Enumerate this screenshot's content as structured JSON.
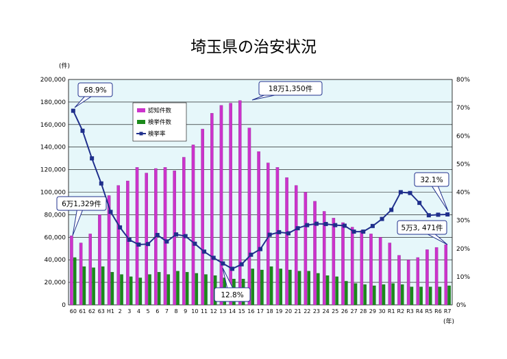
{
  "chart_data": {
    "type": "bar",
    "title": "埼玉県の治安状況",
    "ylabel_left_unit": "(件)",
    "xlabel_unit": "(年)",
    "left_axis": {
      "ylim": [
        0,
        200000
      ],
      "ticks": [
        "0",
        "20,000",
        "40,000",
        "60,000",
        "80,000",
        "100,000",
        "120,000",
        "140,000",
        "160,000",
        "180,000",
        "200,000"
      ]
    },
    "right_axis": {
      "ylim": [
        0,
        80
      ],
      "ticks": [
        "0%",
        "10%",
        "20%",
        "30%",
        "40%",
        "50%",
        "60%",
        "70%",
        "80%"
      ]
    },
    "categories": [
      "60",
      "61",
      "62",
      "63",
      "H1",
      "2",
      "3",
      "4",
      "5",
      "6",
      "7",
      "8",
      "9",
      "10",
      "11",
      "12",
      "13",
      "14",
      "15",
      "16",
      "17",
      "18",
      "19",
      "20",
      "21",
      "22",
      "23",
      "24",
      "25",
      "26",
      "27",
      "28",
      "29",
      "30",
      "R1",
      "R2",
      "R3",
      "R4",
      "R5",
      "R6",
      "R7"
    ],
    "series": [
      {
        "name": "認知件数",
        "type": "bar",
        "color": "#cc33cc",
        "values": [
          61329,
          55000,
          63000,
          80000,
          97000,
          106000,
          110000,
          122000,
          117000,
          121000,
          122000,
          119000,
          131000,
          142000,
          156000,
          170000,
          177000,
          179000,
          181350,
          157000,
          136000,
          126000,
          122000,
          113000,
          106000,
          100000,
          92000,
          83000,
          77000,
          73000,
          69000,
          66000,
          63000,
          60000,
          55000,
          44000,
          40000,
          42000,
          49000,
          51000,
          53471
        ]
      },
      {
        "name": "検挙件数",
        "type": "bar",
        "color": "#1b8a1b",
        "values": [
          42000,
          34000,
          33000,
          34000,
          29000,
          27000,
          25000,
          24000,
          27000,
          29000,
          27000,
          30000,
          29000,
          28000,
          27000,
          26000,
          24000,
          23000,
          23000,
          32000,
          31000,
          34000,
          32000,
          31000,
          30000,
          30000,
          28000,
          26000,
          25000,
          21000,
          19000,
          18000,
          17000,
          18000,
          19000,
          18000,
          16000,
          16000,
          16000,
          16000,
          17000
        ]
      },
      {
        "name": "検挙率",
        "type": "line",
        "color": "#1f2f8c",
        "values": [
          68.9,
          61.8,
          52,
          43.1,
          33,
          27.5,
          23.1,
          21.4,
          21.6,
          24.8,
          22.5,
          25,
          24.4,
          21.7,
          18.9,
          16.7,
          14.7,
          12.8,
          14.4,
          17.8,
          19.8,
          24.9,
          25.8,
          25.4,
          27.2,
          28.3,
          28.8,
          28.7,
          28.3,
          28.1,
          26,
          26,
          28,
          30.5,
          33.7,
          40,
          39.7,
          36.2,
          31.8,
          32,
          32.1
        ]
      }
    ],
    "annotations": [
      "68.9%",
      "18万1,350件",
      "6万1,329件",
      "12.8%",
      "32.1%",
      "5万3, 471件"
    ],
    "legend_position": "inside-left-top",
    "grid": true,
    "colors": {
      "plot_bg": "#e6f7fa",
      "grid": "#000000"
    }
  }
}
